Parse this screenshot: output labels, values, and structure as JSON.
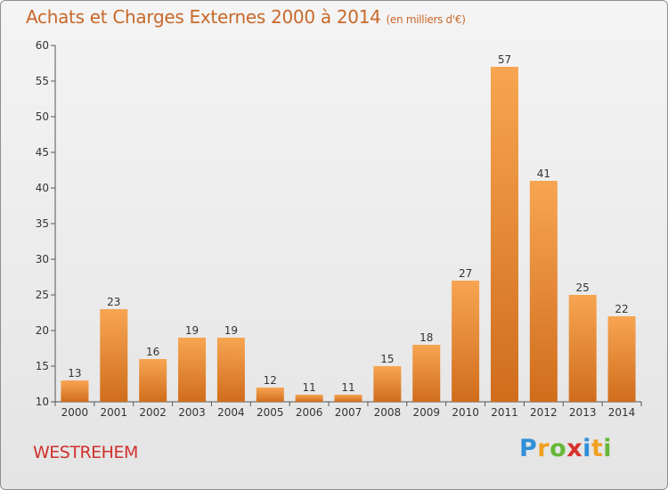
{
  "header": {
    "title": "Achats et Charges Externes 2000 à 2014",
    "unit": "(en milliers d'€)"
  },
  "footer": {
    "commune": "WESTREHEM",
    "brand": [
      "P",
      "r",
      "o",
      "x",
      "i",
      "t",
      "i"
    ]
  },
  "colors": {
    "bar_light": "#f7a552",
    "bar_dark": "#d06d1c",
    "title": "#c8682a",
    "commune": "#d0302c"
  },
  "chart_data": {
    "type": "bar",
    "title": "Achats et Charges Externes 2000 à 2014",
    "categories": [
      "2000",
      "2001",
      "2002",
      "2003",
      "2004",
      "2005",
      "2006",
      "2007",
      "2008",
      "2009",
      "2010",
      "2011",
      "2012",
      "2013",
      "2014"
    ],
    "values": [
      13,
      23,
      16,
      19,
      19,
      12,
      11,
      11,
      15,
      18,
      27,
      57,
      41,
      25,
      22
    ],
    "ylim": [
      10,
      60
    ],
    "yticks": [
      10,
      15,
      20,
      25,
      30,
      35,
      40,
      45,
      50,
      55,
      60
    ],
    "grid": false,
    "data_labels": true
  }
}
